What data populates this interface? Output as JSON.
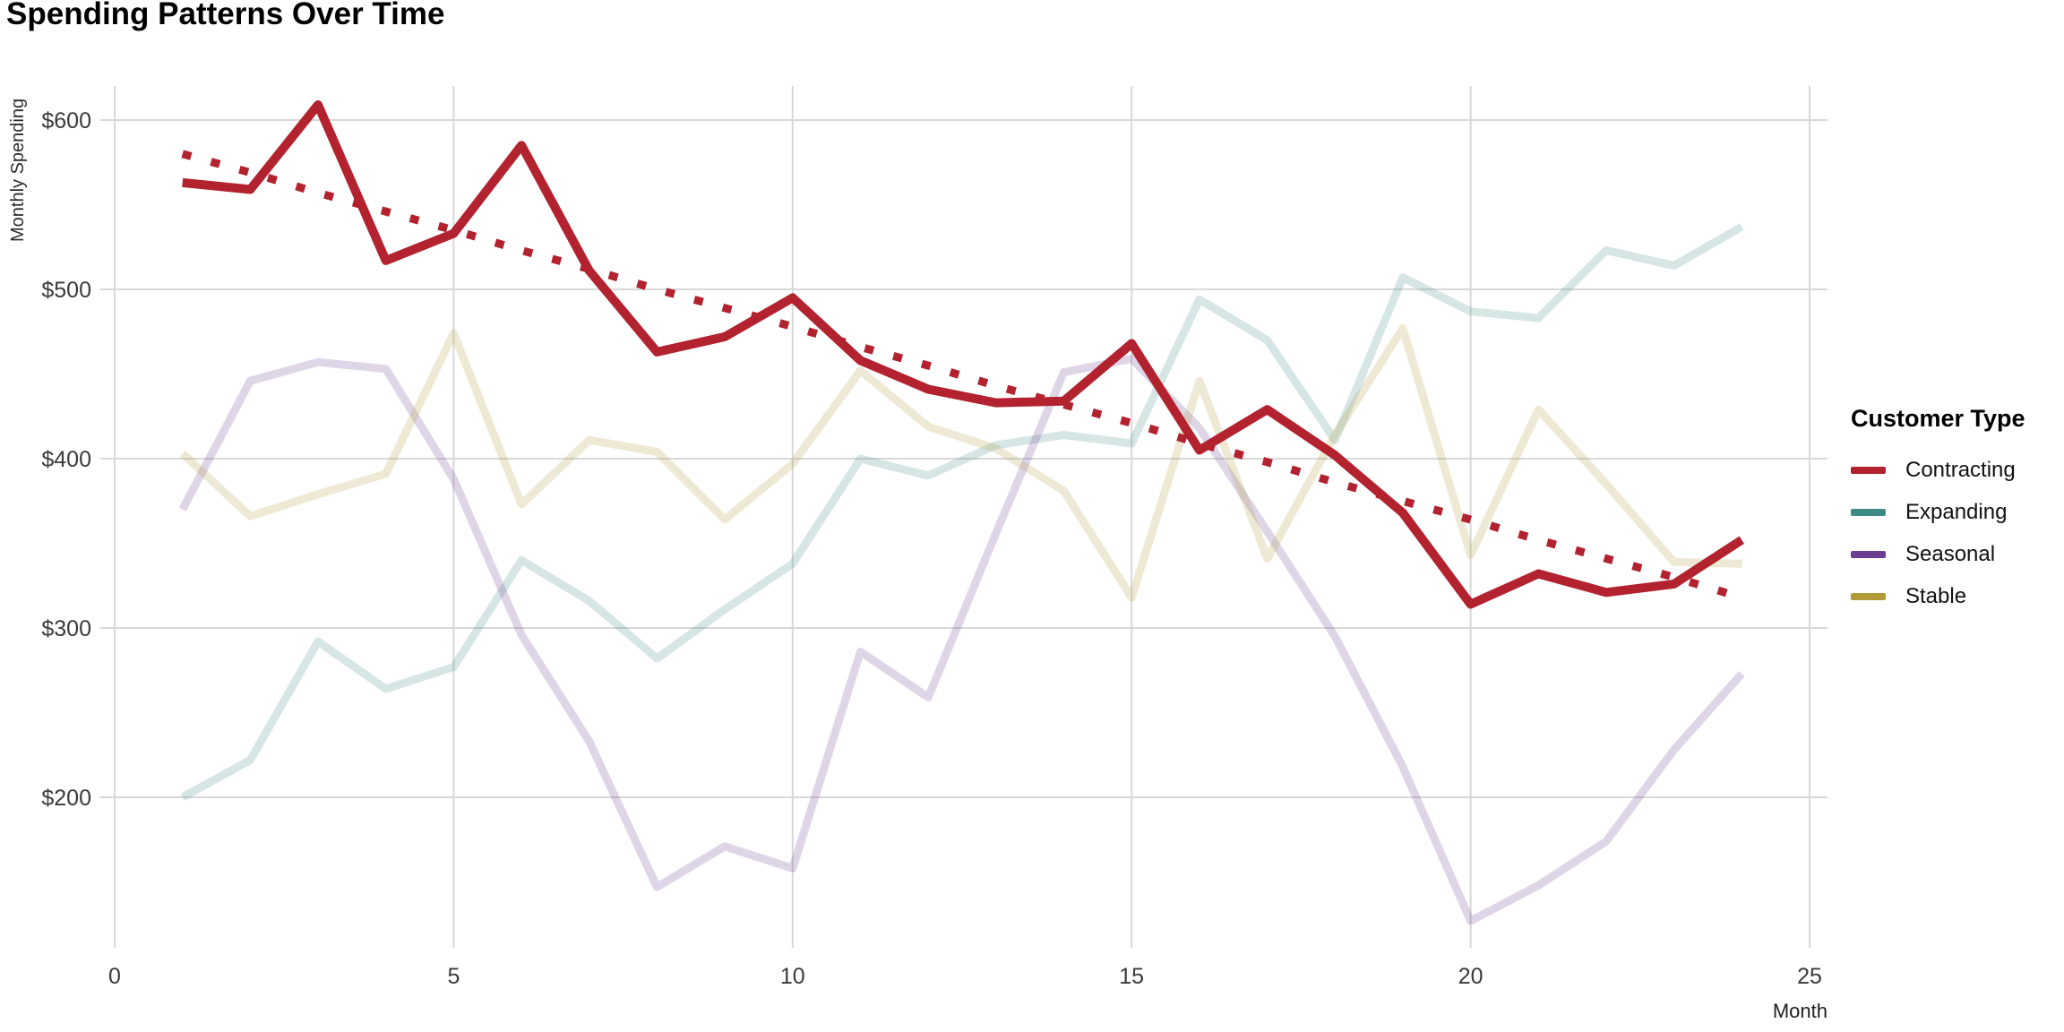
{
  "title": "Spending Patterns Over Time",
  "axes": {
    "y_label": "Monthly Spending",
    "x_label": "Month",
    "y_ticks": [
      {
        "value": 200,
        "label": "$200"
      },
      {
        "value": 300,
        "label": "$300"
      },
      {
        "value": 400,
        "label": "$400"
      },
      {
        "value": 500,
        "label": "$500"
      },
      {
        "value": 600,
        "label": "$600"
      }
    ],
    "x_ticks": [
      {
        "value": 0,
        "label": "0"
      },
      {
        "value": 5,
        "label": "5"
      },
      {
        "value": 10,
        "label": "10"
      },
      {
        "value": 15,
        "label": "15"
      },
      {
        "value": 20,
        "label": "20"
      },
      {
        "value": 25,
        "label": "25"
      }
    ]
  },
  "legend": {
    "title": "Customer Type",
    "items": [
      {
        "label": "Contracting",
        "color": "#b2222f"
      },
      {
        "label": "Expanding",
        "color": "#3e8b84"
      },
      {
        "label": "Seasonal",
        "color": "#6b3e92"
      },
      {
        "label": "Stable",
        "color": "#b39a39"
      }
    ]
  },
  "chart_data": {
    "type": "line",
    "title": "Spending Patterns Over Time",
    "xlabel": "Month",
    "ylabel": "Monthly Spending",
    "xlim": [
      0,
      25
    ],
    "ylim": [
      110,
      645
    ],
    "grid": true,
    "legend_position": "right",
    "x": [
      1,
      2,
      3,
      4,
      5,
      6,
      7,
      8,
      9,
      10,
      11,
      12,
      13,
      14,
      15,
      16,
      17,
      18,
      19,
      20,
      21,
      22,
      23,
      24
    ],
    "series": [
      {
        "name": "Contracting",
        "color": "#b2222f",
        "style": "solid-bold",
        "values": [
          563,
          559,
          609,
          517,
          533,
          585,
          511,
          463,
          472,
          495,
          458,
          441,
          433,
          434,
          468,
          405,
          429,
          402,
          368,
          314,
          332,
          321,
          326,
          352
        ]
      },
      {
        "name": "Expanding",
        "color": "#3e8b84",
        "style": "faded",
        "values": [
          200,
          222,
          292,
          264,
          277,
          340,
          316,
          282,
          311,
          338,
          400,
          390,
          408,
          414,
          409,
          494,
          470,
          411,
          507,
          487,
          483,
          523,
          514,
          537
        ]
      },
      {
        "name": "Seasonal",
        "color": "#6b3e92",
        "style": "faded",
        "values": [
          370,
          446,
          457,
          453,
          388,
          296,
          233,
          147,
          171,
          158,
          286,
          259,
          356,
          451,
          459,
          418,
          357,
          295,
          218,
          127,
          148,
          174,
          228,
          273
        ]
      },
      {
        "name": "Stable",
        "color": "#b39a39",
        "style": "faded",
        "values": [
          403,
          366,
          379,
          391,
          474,
          373,
          411,
          404,
          364,
          397,
          452,
          419,
          406,
          381,
          318,
          446,
          341,
          414,
          477,
          343,
          429,
          385,
          339,
          338
        ]
      },
      {
        "name": "Contracting trend",
        "color": "#b2222f",
        "style": "dotted",
        "values": [
          580,
          569,
          557,
          546,
          535,
          523,
          512,
          500,
          489,
          478,
          466,
          455,
          443,
          432,
          421,
          409,
          398,
          386,
          375,
          364,
          352,
          341,
          330,
          318
        ]
      }
    ]
  }
}
